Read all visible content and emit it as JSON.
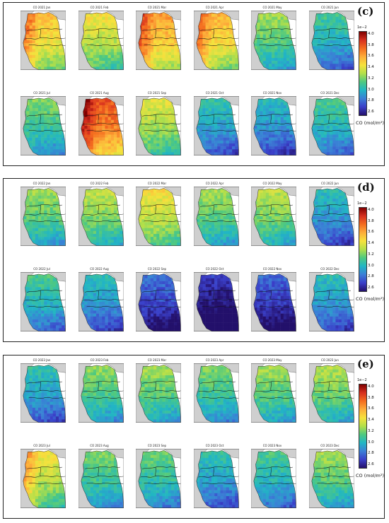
{
  "panels": [
    {
      "label": "(c)",
      "titles": [
        "CO 2021 Jan",
        "CO 2021 Feb",
        "CO 2021 Mar",
        "CO 2021 Apr",
        "CO 2021 May",
        "CO 2021 Jun",
        "CO 2021 Jul",
        "CO 2021 Aug",
        "CO 2021 Sep",
        "CO 2021 Oct",
        "CO 2021 Nov",
        "CO 2021 Dec"
      ],
      "levels": [
        0.62,
        0.55,
        0.68,
        0.64,
        0.44,
        0.33,
        0.4,
        0.8,
        0.52,
        0.3,
        0.27,
        0.34
      ],
      "highlight": [
        true,
        false,
        true,
        true,
        false,
        false,
        false,
        true,
        false,
        false,
        false,
        false
      ]
    },
    {
      "label": "(d)",
      "titles": [
        "CO 2022 Jan",
        "CO 2022 Feb",
        "CO 2022 Mar",
        "CO 2022 Apr",
        "CO 2022 May",
        "CO 2022 Jun",
        "CO 2022 Jul",
        "CO 2022 Aug",
        "CO 2022 Sep",
        "CO 2022 Oct",
        "CO 2022 Nov",
        "CO 2022 Dec"
      ],
      "levels": [
        0.44,
        0.48,
        0.56,
        0.44,
        0.47,
        0.28,
        0.34,
        0.28,
        0.14,
        0.04,
        0.12,
        0.28
      ],
      "highlight": [
        false,
        false,
        false,
        false,
        false,
        false,
        false,
        false,
        false,
        false,
        false,
        false
      ]
    },
    {
      "label": "(e)",
      "titles": [
        "CO 2023 Jan",
        "CO 2023 Feb",
        "CO 2023 Mar",
        "CO 2023 Apr",
        "CO 2023 May",
        "CO 2023 Jun",
        "CO 2023 Jul",
        "CO 2023 Aug",
        "CO 2023 Sep",
        "CO 2023 Oct",
        "CO 2023 Nov",
        "CO 2023 Dec"
      ],
      "levels": [
        0.3,
        0.42,
        0.44,
        0.4,
        0.44,
        0.46,
        0.55,
        0.4,
        0.38,
        0.3,
        0.34,
        0.44
      ],
      "highlight": [
        false,
        false,
        false,
        false,
        false,
        false,
        true,
        false,
        false,
        false,
        false,
        false
      ]
    }
  ],
  "colorbar": {
    "exponent": "1e−2",
    "ticks": [
      "4.0",
      "3.8",
      "3.6",
      "3.4",
      "3.2",
      "3.0",
      "2.8",
      "2.6"
    ],
    "label": "CO (mol/m²)",
    "gradient": [
      "#7f0000",
      "#d7301f",
      "#f46d1f",
      "#fdae3a",
      "#f6e23c",
      "#b2df4a",
      "#4fc980",
      "#21b6c4",
      "#3b7fd6",
      "#3a3fc9",
      "#23106b"
    ]
  },
  "chart_data": {
    "type": "heatmap",
    "title": "",
    "variable": "CO (mol/m²)",
    "scale_exponent": "1e−2",
    "colorbar_range": [
      2.6,
      4.0
    ],
    "colorbar_ticks": [
      2.6,
      2.8,
      3.0,
      3.2,
      3.4,
      3.6,
      3.8,
      4.0
    ],
    "months": [
      "Jan",
      "Feb",
      "Mar",
      "Apr",
      "May",
      "Jun",
      "Jul",
      "Aug",
      "Sep",
      "Oct",
      "Nov",
      "Dec"
    ],
    "series": [
      {
        "name": "2021",
        "values": [
          3.47,
          3.37,
          3.55,
          3.5,
          3.22,
          3.06,
          3.16,
          3.72,
          3.33,
          3.02,
          2.98,
          3.08
        ]
      },
      {
        "name": "2022",
        "values": [
          3.22,
          3.27,
          3.38,
          3.22,
          3.26,
          3.0,
          3.08,
          3.0,
          2.8,
          2.66,
          2.77,
          3.0
        ]
      },
      {
        "name": "2023",
        "values": [
          3.02,
          3.19,
          3.22,
          3.16,
          3.22,
          3.24,
          3.37,
          3.16,
          3.13,
          3.02,
          3.08,
          3.22
        ]
      }
    ]
  }
}
